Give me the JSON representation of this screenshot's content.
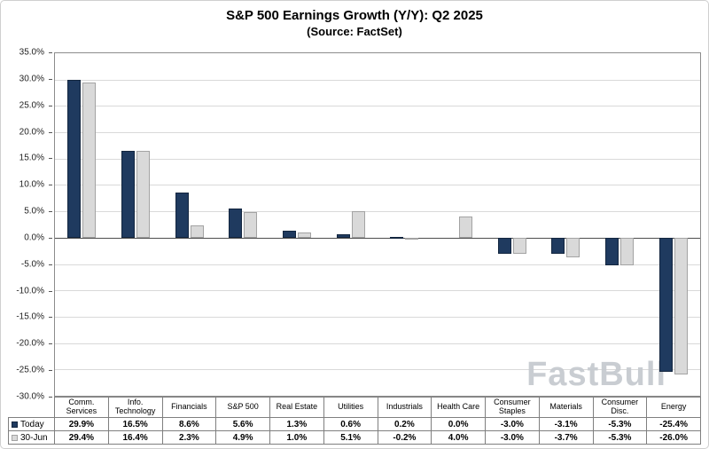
{
  "header": {
    "title": "S&P 500 Earnings Growth (Y/Y): Q2 2025",
    "subtitle": "(Source: FactSet)"
  },
  "watermark": "FastBull",
  "colors": {
    "series_fill": [
      "#1f3a5f",
      "#d9d9d9"
    ],
    "series_border": [
      "#13263f",
      "#a3a3a3"
    ],
    "grid": "#d9d9d9",
    "zero_line": "#4d4d4d",
    "plot_border": "#8c8c8c"
  },
  "chart_data": {
    "type": "bar",
    "title": "S&P 500 Earnings Growth (Y/Y): Q2 2025",
    "subtitle": "(Source: FactSet)",
    "categories": [
      "Comm. Services",
      "Info. Technology",
      "Financials",
      "S&P 500",
      "Real Estate",
      "Utilities",
      "Industrials",
      "Health Care",
      "Consumer Staples",
      "Materials",
      "Consumer Disc.",
      "Energy"
    ],
    "series": [
      {
        "name": "Today",
        "values": [
          29.9,
          16.5,
          8.6,
          5.6,
          1.3,
          0.6,
          0.2,
          0.0,
          -3.0,
          -3.1,
          -5.3,
          -25.4
        ]
      },
      {
        "name": "30-Jun",
        "values": [
          29.4,
          16.4,
          2.3,
          4.9,
          1.0,
          5.1,
          -0.2,
          4.0,
          -3.0,
          -3.7,
          -5.3,
          -26.0
        ]
      }
    ],
    "ylim": [
      -30,
      35
    ],
    "ytick_step": 5,
    "ytick_labels": [
      "35.0%",
      "30.0%",
      "25.0%",
      "20.0%",
      "15.0%",
      "10.0%",
      "5.0%",
      "0.0%",
      "-5.0%",
      "-10.0%",
      "-15.0%",
      "-20.0%",
      "-25.0%",
      "-30.0%"
    ],
    "value_format": "percent_1dp",
    "grid": true,
    "legend_position": "table-left"
  }
}
